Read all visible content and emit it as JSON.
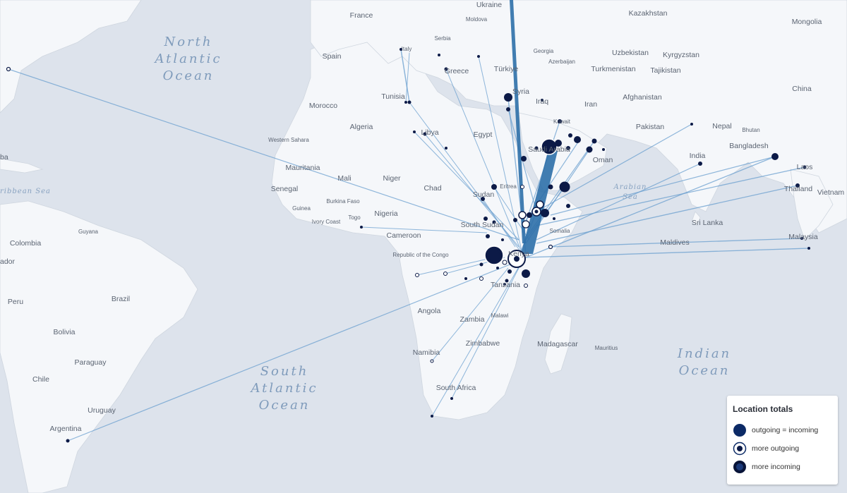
{
  "map": {
    "countries": [
      "Ukraine",
      "Kazakhstan",
      "Mongolia",
      "France",
      "Moldova",
      "Spain",
      "Italy",
      "Serbia",
      "Georgia",
      "Azerbaijan",
      "Uzbekistan",
      "Kyrgyzstan",
      "Türkiye",
      "Greece",
      "Turkmenistan",
      "Tajikistan",
      "Syria",
      "China",
      "Tunisia",
      "Iraq",
      "Iran",
      "Afghanistan",
      "Morocco",
      "Kuwait",
      "Algeria",
      "Libya",
      "Egypt",
      "Pakistan",
      "Nepal",
      "Bhutan",
      "Western Sahara",
      "Saudi Arabia",
      "Bangladesh",
      "Oman",
      "India",
      "Mauritania",
      "Mali",
      "Niger",
      "Chad",
      "Sudan",
      "Laos",
      "Senegal",
      "Eritrea",
      "Thailand",
      "Vietnam",
      "Burkina Faso",
      "Guinea",
      "Nigeria",
      "Togo",
      "Ivory Coast",
      "South Sudan",
      "Somalia",
      "Sri Lanka",
      "Guyana",
      "Cameroon",
      "Colombia",
      "Republic of the Congo",
      "Malaysia",
      "Maldives",
      "Kenya",
      "Peru",
      "Tanzania",
      "Brazil",
      "Angola",
      "Malawi",
      "Zambia",
      "Bolivia",
      "Zimbabwe",
      "Madagascar",
      "Mauritius",
      "Namibia",
      "Paraguay",
      "Chile",
      "South Africa",
      "Uruguay",
      "Argentina",
      "ador",
      "ba"
    ],
    "oceans": [
      "North Atlantic Ocean",
      "South Atlantic Ocean",
      "Indian Ocean"
    ],
    "seas": [
      "ribbean Sea",
      "Arabian Sea"
    ]
  },
  "legend": {
    "title": "Location totals",
    "items": [
      {
        "label": "outgoing = incoming",
        "style": "filled"
      },
      {
        "label": "more outgoing",
        "style": "ring"
      },
      {
        "label": "more incoming",
        "style": "dark"
      }
    ]
  },
  "colors": {
    "land": "#f5f7fa",
    "water": "#dde3ec",
    "flow": "#6a9fcf",
    "flow_major": "#2d6fa8",
    "node": "#0c1a47"
  }
}
